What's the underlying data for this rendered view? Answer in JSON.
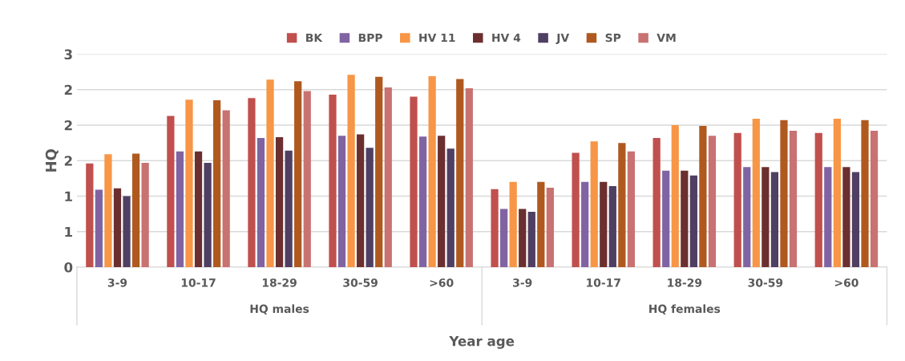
{
  "chart_data": {
    "type": "bar",
    "ylabel": "HQ",
    "xlabel": "Year age",
    "categories": [
      "3-9",
      "10-17",
      "18-29",
      "30-59",
      ">60",
      "3-9",
      "10-17",
      "18-29",
      "30-59",
      ">60"
    ],
    "annotations": [
      "HQ males",
      "HQ females"
    ],
    "series": [
      {
        "name": "BK",
        "color": "#c0504d",
        "values": [
          1.46,
          2.13,
          2.38,
          2.43,
          2.4,
          1.1,
          1.61,
          1.82,
          1.89,
          1.89
        ]
      },
      {
        "name": "BPP",
        "color": "#8064a2",
        "values": [
          1.09,
          1.63,
          1.82,
          1.85,
          1.84,
          0.82,
          1.2,
          1.36,
          1.41,
          1.41
        ]
      },
      {
        "name": "HV 11",
        "color": "#f79646",
        "values": [
          1.59,
          2.36,
          2.64,
          2.71,
          2.69,
          1.2,
          1.77,
          2.0,
          2.09,
          2.09
        ]
      },
      {
        "name": "HV 4",
        "color": "#6b2f2f",
        "values": [
          1.11,
          1.63,
          1.83,
          1.87,
          1.85,
          0.82,
          1.2,
          1.36,
          1.41,
          1.41
        ]
      },
      {
        "name": "JV",
        "color": "#4f3f62",
        "values": [
          1.0,
          1.47,
          1.64,
          1.68,
          1.67,
          0.78,
          1.14,
          1.29,
          1.34,
          1.34
        ]
      },
      {
        "name": "SP",
        "color": "#b0591f",
        "values": [
          1.6,
          2.35,
          2.62,
          2.68,
          2.65,
          1.2,
          1.75,
          1.99,
          2.07,
          2.07
        ]
      },
      {
        "name": "VM",
        "color": "#c87272",
        "values": [
          1.47,
          2.21,
          2.48,
          2.53,
          2.52,
          1.12,
          1.63,
          1.85,
          1.92,
          1.92
        ]
      }
    ],
    "ylim": [
      0,
      3
    ],
    "yticks": [
      0,
      {
        "value": 0.5,
        "label": "1"
      },
      1,
      {
        "value": 1.5,
        "label": "2"
      },
      2,
      {
        "value": 2.5,
        "label": "2"
      },
      3
    ],
    "grid": "y",
    "legend": "top"
  }
}
